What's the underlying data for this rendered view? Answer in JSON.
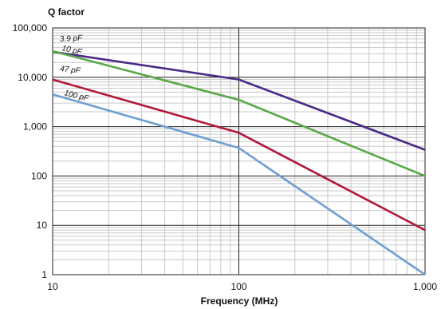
{
  "chart_data": {
    "type": "line",
    "ylabel": "Q factor",
    "xlabel": "Frequency (MHz)",
    "xscale": "log",
    "yscale": "log",
    "xlim": [
      10,
      1000
    ],
    "ylim": [
      1,
      100000
    ],
    "grid": true,
    "x_ticks": [
      10,
      100,
      1000
    ],
    "x_tick_labels": [
      "10",
      "100",
      "1,000"
    ],
    "y_ticks": [
      1,
      10,
      100,
      1000,
      10000,
      100000
    ],
    "y_tick_labels": [
      "1",
      "10",
      "100",
      "1,000",
      "10,000",
      "100,000"
    ],
    "series": [
      {
        "name": "3.9 pF",
        "color": "#4b2a86",
        "points": [
          [
            10,
            33000
          ],
          [
            100,
            9000
          ],
          [
            1000,
            340
          ]
        ]
      },
      {
        "name": "10 pF",
        "color": "#58a846",
        "points": [
          [
            10,
            34000
          ],
          [
            100,
            3500
          ],
          [
            1000,
            100
          ]
        ]
      },
      {
        "name": "47 pF",
        "color": "#b0193a",
        "points": [
          [
            10,
            9000
          ],
          [
            100,
            750
          ],
          [
            1000,
            8
          ]
        ]
      },
      {
        "name": "100 pF",
        "color": "#6f9fd1",
        "points": [
          [
            10,
            4500
          ],
          [
            100,
            370
          ],
          [
            1000,
            1
          ]
        ]
      }
    ]
  }
}
